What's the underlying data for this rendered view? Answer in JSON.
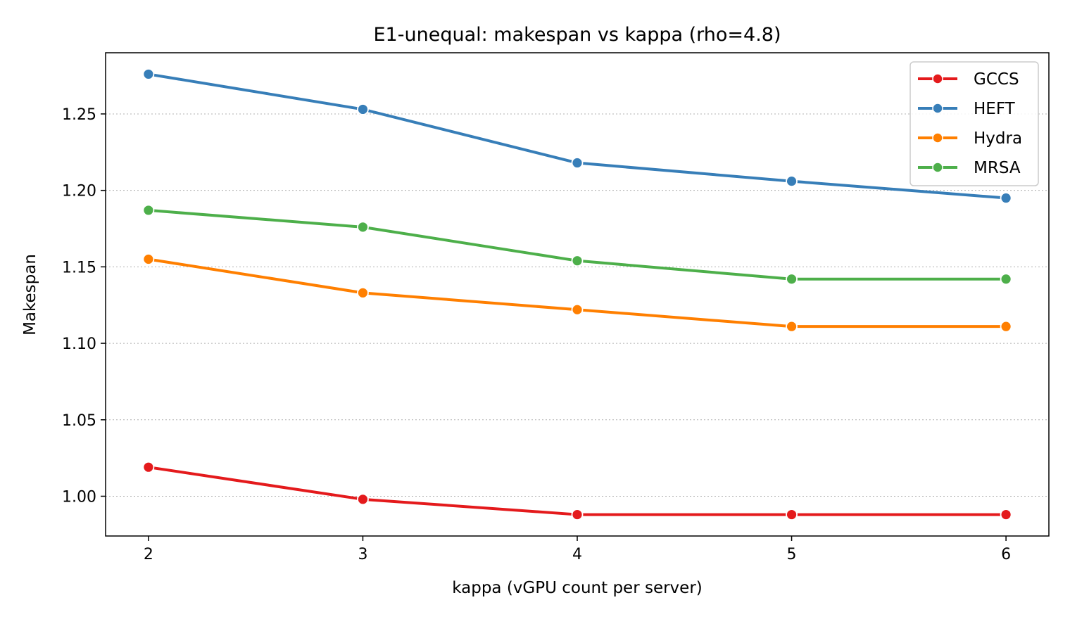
{
  "chart_data": {
    "type": "line",
    "title": "E1-unequal: makespan vs kappa (rho=4.8)",
    "xlabel": "kappa (vGPU count per server)",
    "ylabel": "Makespan",
    "x": [
      2,
      3,
      4,
      5,
      6
    ],
    "x_ticks": [
      "2",
      "3",
      "4",
      "5",
      "6"
    ],
    "xlim": [
      1.8,
      6.2
    ],
    "ylim": [
      0.974,
      1.29
    ],
    "y_ticks": [
      "1.00",
      "1.05",
      "1.10",
      "1.15",
      "1.20",
      "1.25"
    ],
    "grid": "horizontal dotted",
    "legend_position": "top-right",
    "series": [
      {
        "name": "GCCS",
        "color": "#e41a1c",
        "values": [
          1.019,
          0.998,
          0.988,
          0.988,
          0.988
        ]
      },
      {
        "name": "HEFT",
        "color": "#377eb8",
        "values": [
          1.276,
          1.253,
          1.218,
          1.206,
          1.195
        ]
      },
      {
        "name": "Hydra",
        "color": "#ff7f00",
        "values": [
          1.155,
          1.133,
          1.122,
          1.111,
          1.111
        ]
      },
      {
        "name": "MRSA",
        "color": "#4daf4a",
        "values": [
          1.187,
          1.176,
          1.154,
          1.142,
          1.142
        ]
      }
    ]
  }
}
